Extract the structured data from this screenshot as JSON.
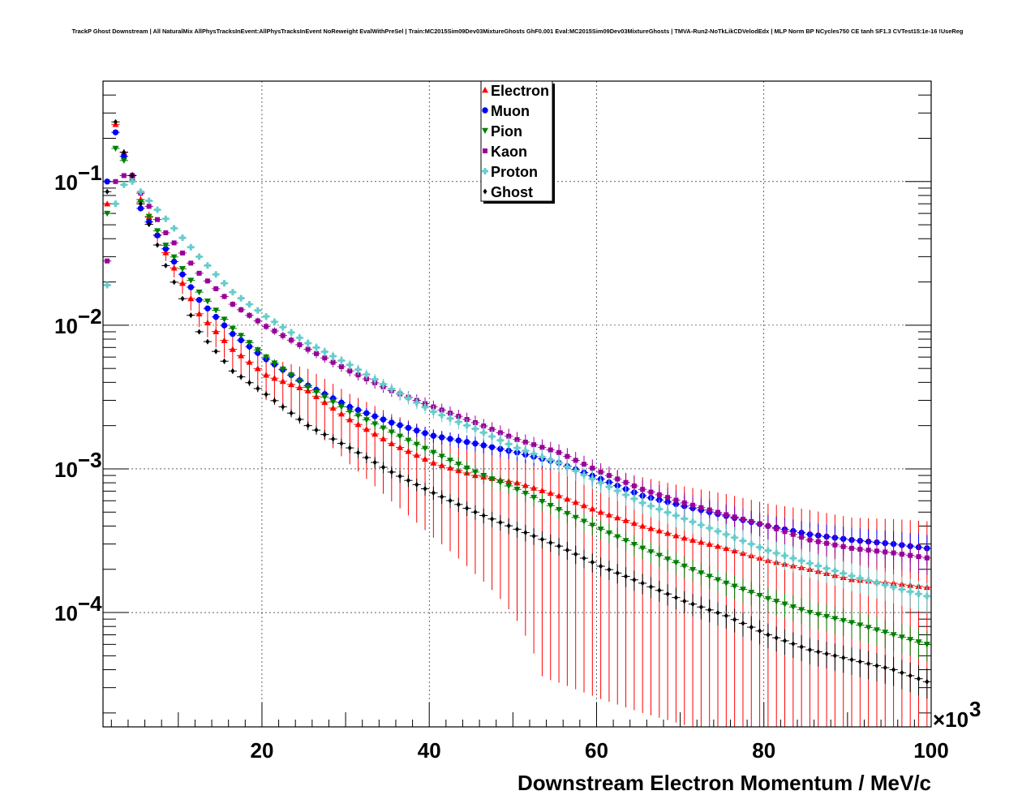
{
  "title": "TrackP Ghost Downstream | All NaturalMix AllPhysTracksInEvent:AllPhysTracksInEvent NoReweight EvalWithPreSel | Train:MC2015Sim09Dev03MixtureGhosts GhF0.001 Eval:MC2015Sim09Dev03MixtureGhosts | TMVA-Run2-NoTkLikCDVelodEdx | MLP Norm BP NCycles750 CE tanh SF1.3 CVTest15:1e-16 !UseReg",
  "chart_data": {
    "type": "scatter",
    "title": "TrackP Ghost Downstream | All NaturalMix AllPhysTracksInEvent:AllPhysTracksInEvent NoReweight EvalWithPreSel | Train:MC2015Sim09Dev03MixtureGhosts GhF0.001 Eval:MC2015Sim09Dev03MixtureGhosts | TMVA-Run2-NoTkLikCDVelodEdx | MLP Norm BP NCycles750 CE tanh SF1.3 CVTest15:1e-16 !UseReg",
    "xlabel": "Downstream Electron Momentum / MeV/c",
    "x_multiplier_label": "×10^3",
    "ylabel": "",
    "xlim": [
      1,
      100
    ],
    "ylim": [
      1.6e-05,
      0.5
    ],
    "y_scale": "log",
    "grid": true,
    "legend_position": "top-center",
    "x_tick_labels": [
      "20",
      "40",
      "60",
      "80",
      "100"
    ],
    "y_tick_labels": [
      "10^-1",
      "10^-2",
      "10^-3",
      "10^-4"
    ],
    "bin_width": 1,
    "x_start": 1.5,
    "series": [
      {
        "name": "Electron",
        "color": "#ff0000",
        "marker": "triangle-up",
        "key_points": [
          [
            1.5,
            0.07
          ],
          [
            2.5,
            0.25
          ],
          [
            3.5,
            0.16
          ],
          [
            4.5,
            0.11
          ],
          [
            5.5,
            0.075
          ],
          [
            8.5,
            0.032
          ],
          [
            12.5,
            0.012
          ],
          [
            16.5,
            0.0068
          ],
          [
            20.5,
            0.0045
          ],
          [
            25.5,
            0.0035
          ],
          [
            30.5,
            0.0022
          ],
          [
            35.5,
            0.0015
          ],
          [
            40.5,
            0.0011
          ],
          [
            45.5,
            0.0009
          ],
          [
            50.5,
            0.0008
          ],
          [
            55.5,
            0.00065
          ],
          [
            60.5,
            0.0005
          ],
          [
            65.5,
            0.0004
          ],
          [
            70.5,
            0.00033
          ],
          [
            75.5,
            0.00028
          ],
          [
            80.5,
            0.00023
          ],
          [
            85.5,
            0.0002
          ],
          [
            90.5,
            0.00017
          ],
          [
            95.5,
            0.00016
          ],
          [
            99.5,
            0.00015
          ]
        ]
      },
      {
        "name": "Muon",
        "color": "#0000ff",
        "marker": "circle",
        "key_points": [
          [
            1.5,
            0.1
          ],
          [
            2.5,
            0.22
          ],
          [
            3.5,
            0.15
          ],
          [
            4.5,
            0.11
          ],
          [
            5.5,
            0.065
          ],
          [
            8.5,
            0.034
          ],
          [
            12.5,
            0.015
          ],
          [
            16.5,
            0.0087
          ],
          [
            20.5,
            0.0058
          ],
          [
            25.5,
            0.0038
          ],
          [
            30.5,
            0.0027
          ],
          [
            35.5,
            0.0021
          ],
          [
            40.5,
            0.0017
          ],
          [
            45.5,
            0.0015
          ],
          [
            50.5,
            0.0013
          ],
          [
            55.5,
            0.0011
          ],
          [
            60.5,
            0.00085
          ],
          [
            65.5,
            0.00065
          ],
          [
            70.5,
            0.00055
          ],
          [
            75.5,
            0.00047
          ],
          [
            80.5,
            0.0004
          ],
          [
            85.5,
            0.00035
          ],
          [
            90.5,
            0.00032
          ],
          [
            95.5,
            0.0003
          ],
          [
            99.5,
            0.00028
          ]
        ]
      },
      {
        "name": "Pion",
        "color": "#008000",
        "marker": "triangle-down",
        "key_points": [
          [
            1.5,
            0.06
          ],
          [
            2.5,
            0.17
          ],
          [
            3.5,
            0.14
          ],
          [
            4.5,
            0.1
          ],
          [
            5.5,
            0.072
          ],
          [
            8.5,
            0.036
          ],
          [
            12.5,
            0.017
          ],
          [
            16.5,
            0.0095
          ],
          [
            20.5,
            0.006
          ],
          [
            25.5,
            0.0037
          ],
          [
            30.5,
            0.0025
          ],
          [
            35.5,
            0.0018
          ],
          [
            40.5,
            0.0013
          ],
          [
            45.5,
            0.00095
          ],
          [
            50.5,
            0.00072
          ],
          [
            55.5,
            0.00052
          ],
          [
            60.5,
            0.00038
          ],
          [
            65.5,
            0.00028
          ],
          [
            70.5,
            0.00021
          ],
          [
            75.5,
            0.00016
          ],
          [
            80.5,
            0.000125
          ],
          [
            85.5,
            0.0001
          ],
          [
            90.5,
            8.5e-05
          ],
          [
            95.5,
            7e-05
          ],
          [
            99.5,
            6e-05
          ]
        ]
      },
      {
        "name": "Kaon",
        "color": "#990099",
        "marker": "square",
        "key_points": [
          [
            1.5,
            0.028
          ],
          [
            2.5,
            0.1
          ],
          [
            3.5,
            0.11
          ],
          [
            4.5,
            0.11
          ],
          [
            5.5,
            0.083
          ],
          [
            8.5,
            0.044
          ],
          [
            12.5,
            0.023
          ],
          [
            16.5,
            0.014
          ],
          [
            20.5,
            0.0098
          ],
          [
            25.5,
            0.0068
          ],
          [
            30.5,
            0.0048
          ],
          [
            35.5,
            0.0035
          ],
          [
            40.5,
            0.0027
          ],
          [
            45.5,
            0.0021
          ],
          [
            50.5,
            0.0016
          ],
          [
            55.5,
            0.0013
          ],
          [
            60.5,
            0.00095
          ],
          [
            65.5,
            0.00072
          ],
          [
            70.5,
            0.00058
          ],
          [
            75.5,
            0.00048
          ],
          [
            80.5,
            0.0004
          ],
          [
            85.5,
            0.00032
          ],
          [
            90.5,
            0.00028
          ],
          [
            95.5,
            0.00026
          ],
          [
            99.5,
            0.00024
          ]
        ]
      },
      {
        "name": "Proton",
        "color": "#66cccc",
        "marker": "cross",
        "key_points": [
          [
            1.5,
            0.019
          ],
          [
            2.5,
            0.07
          ],
          [
            3.5,
            0.095
          ],
          [
            4.5,
            0.1
          ],
          [
            5.5,
            0.085
          ],
          [
            8.5,
            0.055
          ],
          [
            12.5,
            0.03
          ],
          [
            16.5,
            0.017
          ],
          [
            20.5,
            0.0115
          ],
          [
            25.5,
            0.0075
          ],
          [
            30.5,
            0.0053
          ],
          [
            35.5,
            0.0036
          ],
          [
            40.5,
            0.0025
          ],
          [
            45.5,
            0.0019
          ],
          [
            50.5,
            0.0014
          ],
          [
            55.5,
            0.0011
          ],
          [
            60.5,
            0.0008
          ],
          [
            65.5,
            0.00058
          ],
          [
            70.5,
            0.00045
          ],
          [
            75.5,
            0.00035
          ],
          [
            80.5,
            0.00027
          ],
          [
            85.5,
            0.00022
          ],
          [
            90.5,
            0.00018
          ],
          [
            95.5,
            0.00015
          ],
          [
            99.5,
            0.00013
          ]
        ]
      },
      {
        "name": "Ghost",
        "color": "#000000",
        "marker": "diamond",
        "key_points": [
          [
            1.5,
            0.085
          ],
          [
            2.5,
            0.26
          ],
          [
            3.5,
            0.16
          ],
          [
            4.5,
            0.11
          ],
          [
            5.5,
            0.07
          ],
          [
            8.5,
            0.026
          ],
          [
            12.5,
            0.009
          ],
          [
            16.5,
            0.0048
          ],
          [
            20.5,
            0.0033
          ],
          [
            25.5,
            0.002
          ],
          [
            30.5,
            0.0014
          ],
          [
            35.5,
            0.00095
          ],
          [
            40.5,
            0.00068
          ],
          [
            45.5,
            0.0005
          ],
          [
            50.5,
            0.00038
          ],
          [
            55.5,
            0.00029
          ],
          [
            60.5,
            0.00021
          ],
          [
            65.5,
            0.00016
          ],
          [
            70.5,
            0.00012
          ],
          [
            75.5,
            9.5e-05
          ],
          [
            80.5,
            7e-05
          ],
          [
            85.5,
            5.5e-05
          ],
          [
            90.5,
            4.7e-05
          ],
          [
            95.5,
            4e-05
          ],
          [
            99.5,
            3.3e-05
          ]
        ]
      }
    ]
  }
}
